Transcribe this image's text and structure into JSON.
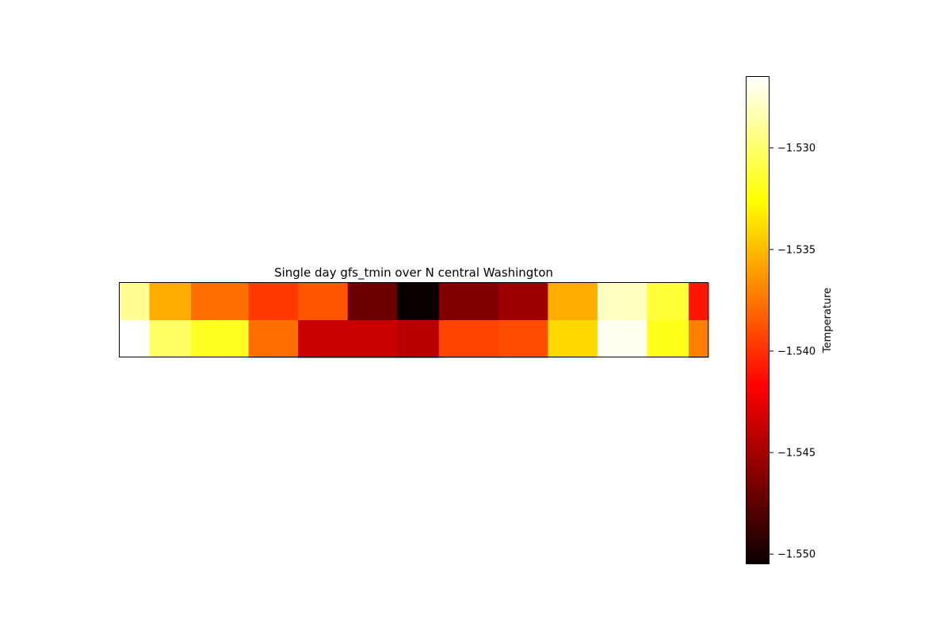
{
  "chart_data": {
    "type": "heatmap",
    "title": "Single day gfs_tmin over N central Washington",
    "colorbar": {
      "label": "Temperature",
      "range": [
        -1.5505,
        -1.5265
      ],
      "ticks": [
        -1.53,
        -1.535,
        -1.54,
        -1.545,
        -1.55
      ],
      "tick_labels": [
        "−1.530",
        "−1.535",
        "−1.540",
        "−1.545",
        "−1.550"
      ],
      "colormap": "hot",
      "placement": "right"
    },
    "column_widths": [
      0.6,
      0.84,
      1.16,
      1.0,
      1.0,
      1.0,
      0.84,
      1.2,
      1.0,
      1.0,
      1.0,
      0.84,
      0.4
    ],
    "rows": [
      [
        -1.529,
        -1.5355,
        -1.5378,
        -1.5397,
        -1.5387,
        -1.5472,
        -1.5505,
        -1.5465,
        -1.5455,
        -1.5355,
        -1.528,
        -1.5312,
        -1.541
      ],
      [
        -1.5265,
        -1.5302,
        -1.5318,
        -1.5378,
        -1.544,
        -1.544,
        -1.5445,
        -1.5393,
        -1.539,
        -1.534,
        -1.5268,
        -1.532,
        -1.5372
      ]
    ],
    "grid": false
  }
}
